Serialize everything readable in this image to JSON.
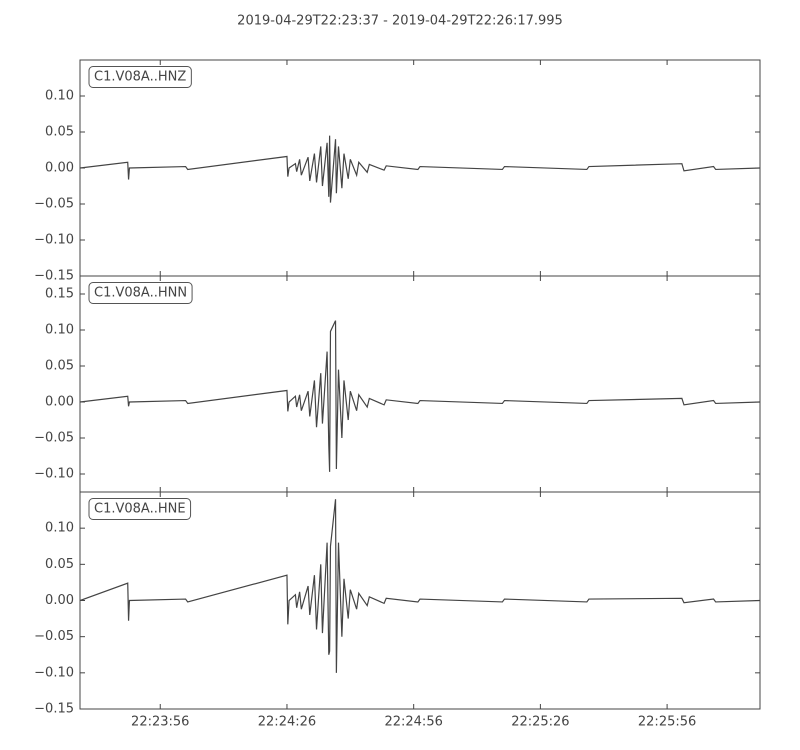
{
  "title": "2019-04-29T22:23:37  -  2019-04-29T22:26:17.995",
  "chart_data": [
    {
      "type": "line",
      "x": [
        0,
        11.3,
        11.5,
        11.7,
        25,
        25.5,
        49,
        49.2,
        49.5,
        51,
        51.3,
        52,
        52.4,
        54,
        54.4,
        55.5,
        56,
        57,
        57.4,
        58.5,
        58.9,
        59.1,
        59.3,
        60.5,
        60.7,
        61.2,
        62,
        62.5,
        63.5,
        64,
        65.5,
        66,
        68,
        68.5,
        72,
        72.5,
        80,
        80.5,
        100,
        100.5,
        120,
        120.5,
        142.5,
        143,
        150,
        150.5,
        160.995
      ],
      "series": [
        {
          "name": "C1.V08A..HNZ",
          "color": "#444444",
          "values": [
            0,
            0.008,
            -0.016,
            0,
            0.002,
            -0.002,
            0.016,
            -0.012,
            0,
            0.006,
            -0.005,
            0.012,
            -0.01,
            0.015,
            -0.018,
            0.02,
            -0.02,
            0.03,
            -0.025,
            0.035,
            -0.04,
            0.045,
            -0.048,
            0.04,
            -0.035,
            0.03,
            -0.028,
            0.02,
            -0.015,
            0.012,
            -0.01,
            0.008,
            -0.006,
            0.005,
            -0.003,
            0.003,
            -0.002,
            0.002,
            -0.002,
            0.002,
            -0.002,
            0.002,
            0.006,
            -0.004,
            0.002,
            -0.002,
            0
          ]
        }
      ],
      "xlim": [
        0,
        160.995
      ],
      "ylim": [
        -0.15,
        0.15
      ],
      "yticks": [
        {
          "value": -0.15,
          "label": "−0.15"
        },
        {
          "value": -0.1,
          "label": "−0.10"
        },
        {
          "value": -0.05,
          "label": "−0.05"
        },
        {
          "value": 0,
          "label": "0.00"
        },
        {
          "value": 0.05,
          "label": "0.05"
        },
        {
          "value": 0.1,
          "label": "0.10"
        }
      ]
    },
    {
      "type": "line",
      "x": [
        0,
        11.3,
        11.5,
        11.7,
        25,
        25.5,
        49,
        49.2,
        49.5,
        51,
        51.3,
        52,
        52.4,
        54,
        54.4,
        55.5,
        56,
        57,
        57.4,
        58.5,
        58.9,
        59.1,
        59.3,
        60.5,
        60.7,
        61.2,
        62,
        62.5,
        63.5,
        64,
        65.5,
        66,
        68,
        68.5,
        72,
        72.5,
        80,
        80.5,
        100,
        100.5,
        120,
        120.5,
        142.5,
        143,
        150,
        150.5,
        160.995
      ],
      "series": [
        {
          "name": "C1.V08A..HNN",
          "color": "#444444",
          "values": [
            0,
            0.008,
            -0.006,
            0,
            0.002,
            -0.002,
            0.016,
            -0.013,
            0,
            0.008,
            -0.007,
            0.01,
            -0.012,
            0.015,
            -0.02,
            0.03,
            -0.035,
            0.04,
            -0.03,
            0.07,
            -0.06,
            -0.097,
            0.098,
            0.113,
            -0.093,
            0.045,
            -0.05,
            0.03,
            -0.025,
            0.015,
            -0.012,
            0.01,
            -0.007,
            0.005,
            -0.004,
            0.003,
            -0.002,
            0.002,
            -0.002,
            0.002,
            -0.002,
            0.002,
            0.005,
            -0.004,
            0.002,
            -0.002,
            0
          ]
        }
      ],
      "xlim": [
        0,
        160.995
      ],
      "ylim": [
        -0.125,
        0.175
      ],
      "yticks": [
        {
          "value": -0.1,
          "label": "−0.10"
        },
        {
          "value": -0.05,
          "label": "−0.05"
        },
        {
          "value": 0,
          "label": "0.00"
        },
        {
          "value": 0.05,
          "label": "0.05"
        },
        {
          "value": 0.1,
          "label": "0.10"
        },
        {
          "value": 0.15,
          "label": "0.15"
        }
      ]
    },
    {
      "type": "line",
      "x": [
        0,
        11.3,
        11.5,
        11.7,
        25,
        25.5,
        49,
        49.2,
        49.5,
        51,
        51.3,
        52,
        52.4,
        54,
        54.4,
        55.5,
        56,
        57,
        57.4,
        58.5,
        58.9,
        59.1,
        59.3,
        60.5,
        60.7,
        61.2,
        62,
        62.5,
        63.5,
        64,
        65.5,
        66,
        68,
        68.5,
        72,
        72.5,
        80,
        80.5,
        100,
        100.5,
        120,
        120.5,
        142.5,
        143,
        150,
        150.5,
        160.995
      ],
      "series": [
        {
          "name": "C1.V08A..HNE",
          "color": "#444444",
          "values": [
            0,
            0.024,
            -0.028,
            0,
            0.002,
            -0.002,
            0.035,
            -0.033,
            0,
            0.008,
            -0.01,
            0.012,
            -0.012,
            0.02,
            -0.02,
            0.035,
            -0.04,
            0.05,
            -0.045,
            0.08,
            -0.075,
            -0.07,
            0.075,
            0.14,
            -0.1,
            0.08,
            -0.05,
            0.03,
            -0.025,
            0.015,
            -0.012,
            0.01,
            -0.007,
            0.005,
            -0.004,
            0.003,
            -0.002,
            0.002,
            -0.002,
            0.002,
            -0.002,
            0.002,
            0.003,
            -0.003,
            0.002,
            -0.002,
            0
          ]
        }
      ],
      "xlim": [
        0,
        160.995
      ],
      "ylim": [
        -0.15,
        0.15
      ],
      "yticks": [
        {
          "value": -0.15,
          "label": "−0.15"
        },
        {
          "value": -0.1,
          "label": "−0.10"
        },
        {
          "value": -0.05,
          "label": "−0.05"
        },
        {
          "value": 0,
          "label": "0.00"
        },
        {
          "value": 0.05,
          "label": "0.05"
        },
        {
          "value": 0.1,
          "label": "0.10"
        }
      ],
      "xticks": [
        {
          "value": 19,
          "label": "22:23:56"
        },
        {
          "value": 49,
          "label": "22:24:26"
        },
        {
          "value": 79,
          "label": "22:24:56"
        },
        {
          "value": 109,
          "label": "22:25:26"
        },
        {
          "value": 139,
          "label": "22:25:56"
        }
      ]
    }
  ]
}
